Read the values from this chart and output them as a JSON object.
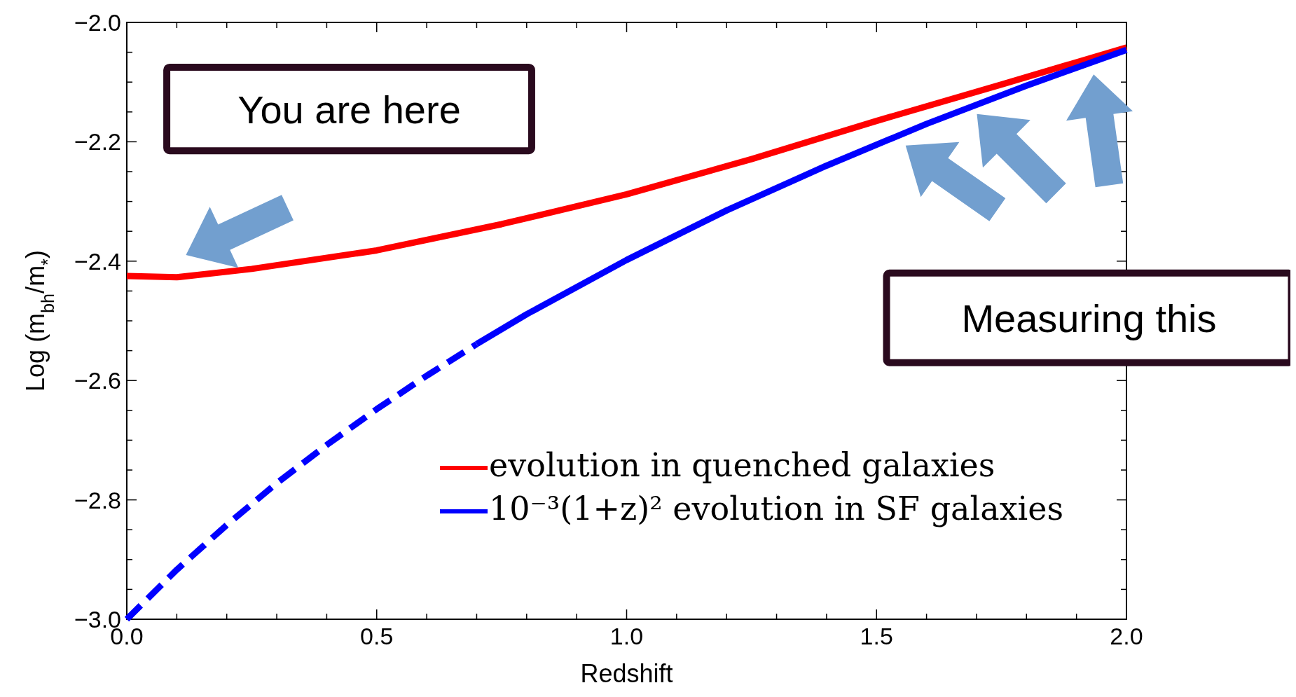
{
  "chart_data": {
    "type": "line",
    "xlabel": "Redshift",
    "ylabel": "Log (m$_{bh}$/m$_{*}$)",
    "xlim": [
      0,
      2
    ],
    "ylim": [
      -3,
      -2
    ],
    "xticks": [
      {
        "value": 0,
        "label": "0.0"
      },
      {
        "value": 0.1,
        "label": null
      },
      {
        "value": 0.2,
        "label": null
      },
      {
        "value": 0.3,
        "label": null
      },
      {
        "value": 0.4,
        "label": null
      },
      {
        "value": 0.5,
        "label": "0.5"
      },
      {
        "value": 0.6,
        "label": null
      },
      {
        "value": 0.7,
        "label": null
      },
      {
        "value": 0.8,
        "label": null
      },
      {
        "value": 0.9,
        "label": null
      },
      {
        "value": 1,
        "label": "1.0"
      },
      {
        "value": 1.1,
        "label": null
      },
      {
        "value": 1.2,
        "label": null
      },
      {
        "value": 1.3,
        "label": null
      },
      {
        "value": 1.4,
        "label": null
      },
      {
        "value": 1.5,
        "label": "1.5"
      },
      {
        "value": 1.6,
        "label": null
      },
      {
        "value": 1.7,
        "label": null
      },
      {
        "value": 1.8,
        "label": null
      },
      {
        "value": 1.9,
        "label": null
      },
      {
        "value": 2,
        "label": "2.0"
      }
    ],
    "yticks": [
      {
        "value": -3,
        "label": "−3.0"
      },
      {
        "value": -2.95,
        "label": null
      },
      {
        "value": -2.9,
        "label": null
      },
      {
        "value": -2.85,
        "label": null
      },
      {
        "value": -2.8,
        "label": "−2.8"
      },
      {
        "value": -2.75,
        "label": null
      },
      {
        "value": -2.7,
        "label": null
      },
      {
        "value": -2.65,
        "label": null
      },
      {
        "value": -2.6,
        "label": "−2.6"
      },
      {
        "value": -2.55,
        "label": null
      },
      {
        "value": -2.5,
        "label": null
      },
      {
        "value": -2.45,
        "label": null
      },
      {
        "value": -2.4,
        "label": "−2.4"
      },
      {
        "value": -2.35,
        "label": null
      },
      {
        "value": -2.3,
        "label": null
      },
      {
        "value": -2.25,
        "label": null
      },
      {
        "value": -2.2,
        "label": "−2.2"
      },
      {
        "value": -2.15,
        "label": null
      },
      {
        "value": -2.1,
        "label": null
      },
      {
        "value": -2.05,
        "label": null
      },
      {
        "value": -2,
        "label": "−2.0"
      }
    ],
    "grid": false,
    "legend": "bottom right",
    "series": [
      {
        "name": "evolution in quenched galaxies",
        "color": "#ff0000",
        "line_style": "solid",
        "x": [
          0,
          0.1,
          0.25,
          0.5,
          0.75,
          1,
          1.25,
          1.5,
          1.75,
          2
        ],
        "values": [
          -2.425,
          -2.427,
          -2.413,
          -2.382,
          -2.338,
          -2.288,
          -2.229,
          -2.165,
          -2.104,
          -2.042
        ]
      },
      {
        "name": "10⁻³(1+z)² evolution in SF galaxies",
        "color": "#0000ff",
        "line_style": "dashed",
        "x": [
          0,
          0.1,
          0.2,
          0.3,
          0.4,
          0.5,
          0.6,
          0.7
        ],
        "values": [
          -3,
          -2.917,
          -2.842,
          -2.772,
          -2.708,
          -2.648,
          -2.592,
          -2.539
        ]
      },
      {
        "color": "#0000ff",
        "line_style": "solid",
        "x": [
          0.7,
          0.8,
          1,
          1.2,
          1.4,
          1.6,
          1.8,
          2
        ],
        "values": [
          -2.539,
          -2.489,
          -2.398,
          -2.315,
          -2.24,
          -2.17,
          -2.106,
          -2.046
        ]
      }
    ],
    "annotations": [
      "You are here",
      "Measuring this"
    ]
  }
}
